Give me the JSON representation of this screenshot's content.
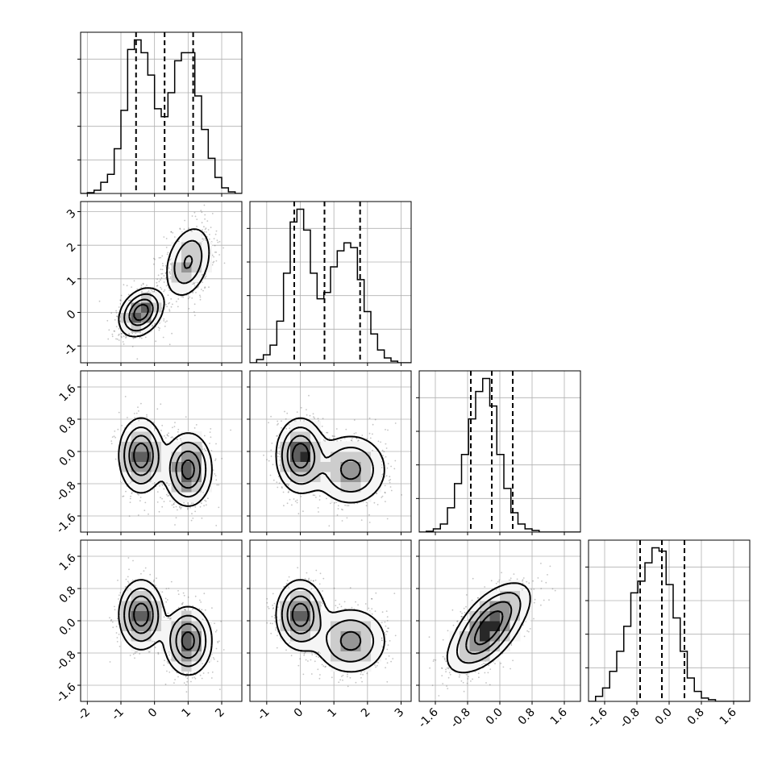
{
  "chart_data": {
    "type": "corner",
    "n_params": 4,
    "ranges": [
      [
        -2.2,
        2.6
      ],
      [
        -1.5,
        3.3
      ],
      [
        -2.0,
        2.0
      ],
      [
        -2.0,
        2.0
      ]
    ],
    "ticks": [
      [
        "-2",
        "-1",
        "0",
        "1",
        "2"
      ],
      [
        "-1",
        "0",
        "1",
        "2",
        "3"
      ],
      [
        "-1.6",
        "-0.8",
        "0.0",
        "0.8",
        "1.6"
      ],
      [
        "-1.6",
        "-0.8",
        "0.0",
        "0.8",
        "1.6"
      ]
    ],
    "tick_values": [
      [
        -2,
        -1,
        0,
        1,
        2
      ],
      [
        -1,
        0,
        1,
        2,
        3
      ],
      [
        -1.6,
        -0.8,
        0.0,
        0.8,
        1.6
      ],
      [
        -1.6,
        -0.8,
        0.0,
        0.8,
        1.6
      ]
    ],
    "quantiles": [
      [
        -0.55,
        0.3,
        1.15
      ],
      [
        -0.18,
        0.72,
        1.78
      ],
      [
        -0.72,
        -0.2,
        0.32
      ],
      [
        -0.72,
        -0.18,
        0.38
      ]
    ],
    "histograms": [
      {
        "x_start": -2.2,
        "bin_width": 0.2,
        "counts": [
          0.0,
          0.005,
          0.02,
          0.07,
          0.12,
          0.28,
          0.52,
          0.9,
          0.96,
          0.88,
          0.74,
          0.53,
          0.48,
          0.63,
          0.83,
          0.88,
          0.88,
          0.61,
          0.4,
          0.22,
          0.1,
          0.035,
          0.01,
          0.0
        ]
      },
      {
        "x_start": -1.5,
        "bin_width": 0.2,
        "counts": [
          0.0,
          0.02,
          0.05,
          0.11,
          0.26,
          0.56,
          0.88,
          0.96,
          0.83,
          0.56,
          0.4,
          0.44,
          0.6,
          0.7,
          0.75,
          0.72,
          0.52,
          0.32,
          0.18,
          0.08,
          0.03,
          0.01,
          0.0,
          0.0
        ]
      },
      {
        "x_start": -2.0,
        "bin_width": 0.175,
        "counts": [
          0.0,
          0.005,
          0.02,
          0.05,
          0.15,
          0.3,
          0.48,
          0.7,
          0.87,
          0.95,
          0.78,
          0.48,
          0.27,
          0.12,
          0.05,
          0.02,
          0.01,
          0.0,
          0.0,
          0.0,
          0.0,
          0.0,
          0.0
        ]
      },
      {
        "x_start": -2.0,
        "bin_width": 0.175,
        "counts": [
          0.0,
          0.03,
          0.08,
          0.18,
          0.3,
          0.45,
          0.65,
          0.72,
          0.83,
          0.92,
          0.9,
          0.7,
          0.5,
          0.3,
          0.14,
          0.06,
          0.02,
          0.01,
          0.0,
          0.0,
          0.0,
          0.0,
          0.0
        ]
      }
    ],
    "mixture": {
      "components": [
        {
          "weight": 0.5,
          "mean": [
            -0.4,
            0.0,
            -0.1,
            0.15
          ],
          "sd": [
            0.32,
            0.35,
            0.45,
            0.42
          ]
        },
        {
          "weight": 0.5,
          "mean": [
            1.0,
            1.5,
            -0.45,
            -0.5
          ],
          "sd": [
            0.35,
            0.55,
            0.45,
            0.42
          ]
        }
      ],
      "correlation": [
        [
          1.0,
          0.3,
          0.0,
          0.0
        ],
        [
          0.3,
          1.0,
          0.0,
          0.0
        ],
        [
          0.0,
          0.0,
          1.0,
          0.55
        ],
        [
          0.0,
          0.0,
          0.55,
          1.0
        ]
      ]
    },
    "grid": true,
    "xlabel": "",
    "ylabel": "",
    "title": ""
  }
}
